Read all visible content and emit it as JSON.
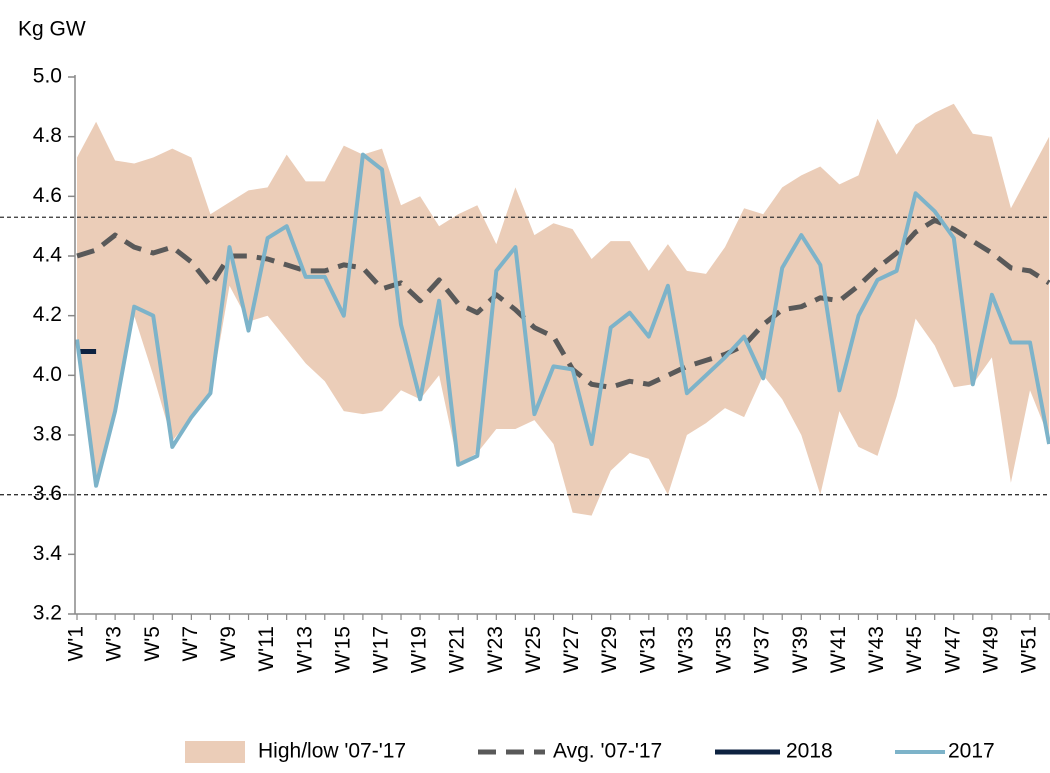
{
  "chart_data": {
    "type": "line",
    "title": "Kg GW",
    "categories": [
      "W'1",
      null,
      "W'3",
      null,
      "W'5",
      null,
      "W'7",
      null,
      "W'9",
      null,
      "W'11",
      null,
      "W'13",
      null,
      "W'15",
      null,
      "W'17",
      null,
      "W'19",
      null,
      "W'21",
      null,
      "W'23",
      null,
      "W'25",
      null,
      "W'27",
      null,
      "W'29",
      null,
      "W'31",
      null,
      "W'33",
      null,
      "W'35",
      null,
      "W'37",
      null,
      "W'39",
      null,
      "W'41",
      null,
      "W'43",
      null,
      "W'45",
      null,
      "W'47",
      null,
      "W'49",
      null,
      "W'51",
      null
    ],
    "ylim": [
      3.2,
      5.0
    ],
    "yticks": [
      3.2,
      3.4,
      3.6,
      3.8,
      {
        "value": 4,
        "label": "4.0"
      },
      4.2,
      4.4,
      4.6,
      4.8,
      {
        "value": 5,
        "label": "5.0"
      }
    ],
    "hlines": [
      4.53,
      3.6
    ],
    "grid": false,
    "legend": "bottom",
    "series": [
      {
        "name": "High/low '07-'17",
        "type": "band",
        "color": "#ebcdb8",
        "high": [
          4.73,
          4.85,
          4.72,
          4.71,
          4.73,
          4.76,
          4.73,
          4.54,
          4.58,
          4.62,
          4.63,
          4.74,
          4.65,
          4.65,
          4.77,
          4.74,
          4.76,
          4.57,
          4.6,
          4.5,
          4.54,
          4.57,
          4.44,
          4.63,
          4.47,
          4.51,
          4.49,
          4.39,
          4.45,
          4.45,
          4.35,
          4.44,
          4.35,
          4.34,
          4.43,
          4.56,
          4.54,
          4.63,
          4.67,
          4.7,
          4.64,
          4.67,
          4.86,
          4.74,
          4.84,
          4.88,
          4.91,
          4.81,
          4.8,
          4.56,
          4.68,
          4.8
        ],
        "low": [
          4.08,
          3.63,
          3.9,
          4.2,
          4.0,
          3.78,
          3.86,
          3.93,
          4.3,
          4.18,
          4.2,
          4.12,
          4.04,
          3.98,
          3.88,
          3.87,
          3.88,
          3.95,
          3.92,
          4.0,
          3.7,
          3.74,
          3.82,
          3.82,
          3.85,
          3.77,
          3.54,
          3.53,
          3.68,
          3.74,
          3.72,
          3.6,
          3.8,
          3.84,
          3.89,
          3.86,
          4.0,
          3.92,
          3.8,
          3.6,
          3.88,
          3.76,
          3.73,
          3.93,
          4.19,
          4.1,
          3.96,
          3.97,
          4.06,
          3.64,
          3.95,
          3.79
        ]
      },
      {
        "name": "Avg. '07-'17",
        "color": "#595959",
        "dash": true,
        "values": [
          4.4,
          4.42,
          4.47,
          4.43,
          4.41,
          4.43,
          4.38,
          4.3,
          4.4,
          4.4,
          4.39,
          4.37,
          4.35,
          4.35,
          4.37,
          4.36,
          4.29,
          4.31,
          4.25,
          4.32,
          4.24,
          4.21,
          4.27,
          4.22,
          4.16,
          4.13,
          4.02,
          3.97,
          3.96,
          3.98,
          3.97,
          4.0,
          4.03,
          4.05,
          4.07,
          4.1,
          4.17,
          4.22,
          4.23,
          4.26,
          4.25,
          4.3,
          4.36,
          4.41,
          4.48,
          4.52,
          4.49,
          4.45,
          4.41,
          4.36,
          4.35,
          4.31
        ]
      },
      {
        "name": "2018",
        "color": "#0d2240",
        "width": 5,
        "values": [
          4.08,
          4.08,
          null,
          null,
          null,
          null,
          null,
          null,
          null,
          null,
          null,
          null,
          null,
          null,
          null,
          null,
          null,
          null,
          null,
          null,
          null,
          null,
          null,
          null,
          null,
          null,
          null,
          null,
          null,
          null,
          null,
          null,
          null,
          null,
          null,
          null,
          null,
          null,
          null,
          null,
          null,
          null,
          null,
          null,
          null,
          null,
          null,
          null,
          null,
          null,
          null,
          null
        ]
      },
      {
        "name": "2017",
        "color": "#7db3c9",
        "width": 4,
        "values": [
          4.12,
          3.63,
          3.88,
          4.23,
          4.2,
          3.76,
          3.86,
          3.94,
          4.43,
          4.15,
          4.46,
          4.5,
          4.33,
          4.33,
          4.2,
          4.74,
          4.69,
          4.17,
          3.92,
          4.25,
          3.7,
          3.73,
          4.35,
          4.43,
          3.87,
          4.03,
          4.02,
          3.77,
          4.16,
          4.21,
          4.13,
          4.3,
          3.94,
          4.0,
          4.06,
          4.13,
          3.99,
          4.36,
          4.47,
          4.37,
          3.95,
          4.2,
          4.32,
          4.35,
          4.61,
          4.55,
          4.46,
          3.97,
          4.27,
          4.11,
          4.11,
          3.77
        ]
      }
    ]
  }
}
